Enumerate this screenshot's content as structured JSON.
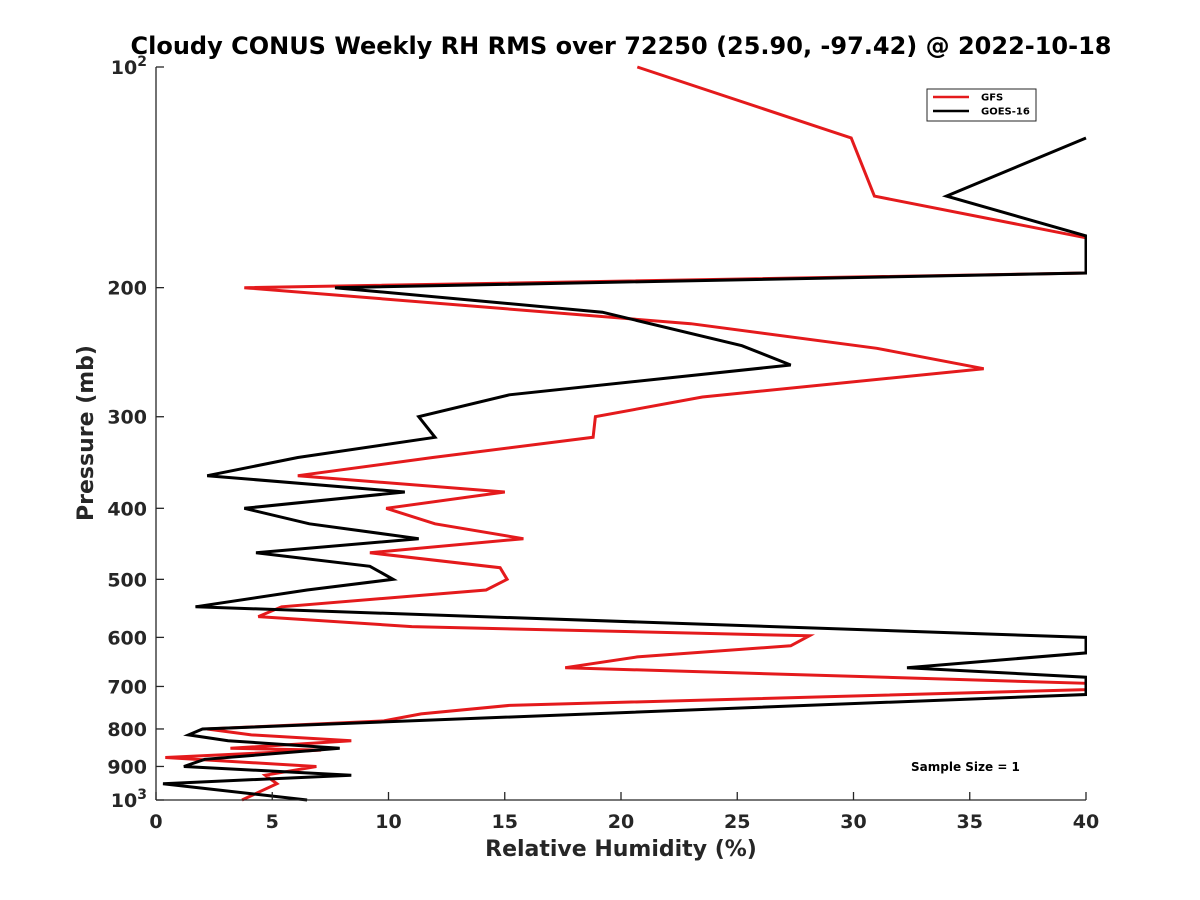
{
  "chart_data": {
    "type": "line",
    "title": "Cloudy CONUS Weekly RH RMS over 72250 (25.90, -97.42) @ 2022-10-18",
    "xlabel": "Relative Humidity (%)",
    "ylabel": "Pressure (mb)",
    "xlim": [
      0,
      40
    ],
    "ylim": [
      100,
      1000
    ],
    "y_scale": "log",
    "y_reversed": true,
    "x_ticks": [
      "0",
      "5",
      "10",
      "15",
      "20",
      "25",
      "30",
      "35",
      "40"
    ],
    "y_ticks": [
      {
        "value": 100,
        "label": "10",
        "sup": "2"
      },
      {
        "value": 200,
        "label": "200",
        "sup": ""
      },
      {
        "value": 300,
        "label": "300",
        "sup": ""
      },
      {
        "value": 400,
        "label": "400",
        "sup": ""
      },
      {
        "value": 500,
        "label": "500",
        "sup": ""
      },
      {
        "value": 600,
        "label": "600",
        "sup": ""
      },
      {
        "value": 700,
        "label": "700",
        "sup": ""
      },
      {
        "value": 800,
        "label": "800",
        "sup": ""
      },
      {
        "value": 900,
        "label": "900",
        "sup": ""
      },
      {
        "value": 1000,
        "label": "10",
        "sup": "3"
      }
    ],
    "grid": false,
    "legend_position": "top-right",
    "annotation": "Sample Size = 1",
    "series": [
      {
        "name": "GFS",
        "color": "#e41a1c",
        "points": [
          [
            20.7,
            100
          ],
          [
            29.9,
            125
          ],
          [
            30.9,
            150
          ],
          [
            40.0,
            171
          ],
          [
            40.0,
            191
          ],
          [
            3.8,
            200
          ],
          [
            23.0,
            224
          ],
          [
            31.0,
            242
          ],
          [
            35.6,
            258
          ],
          [
            23.5,
            282
          ],
          [
            18.9,
            300
          ],
          [
            18.8,
            320
          ],
          [
            11.9,
            341
          ],
          [
            6.1,
            361
          ],
          [
            15.0,
            380
          ],
          [
            9.9,
            400
          ],
          [
            12.0,
            420
          ],
          [
            15.8,
            440
          ],
          [
            9.2,
            460
          ],
          [
            14.8,
            482
          ],
          [
            15.1,
            500
          ],
          [
            14.2,
            517
          ],
          [
            5.4,
            545
          ],
          [
            4.4,
            562
          ],
          [
            11.0,
            580
          ],
          [
            28.1,
            597
          ],
          [
            27.3,
            616
          ],
          [
            20.7,
            638
          ],
          [
            17.6,
            660
          ],
          [
            40.0,
            693
          ],
          [
            40.0,
            707
          ],
          [
            15.2,
            743
          ],
          [
            11.4,
            763
          ],
          [
            9.8,
            780
          ],
          [
            2.2,
            800
          ],
          [
            4.1,
            815
          ],
          [
            8.4,
            830
          ],
          [
            3.2,
            850
          ],
          [
            7.1,
            855
          ],
          [
            0.4,
            875
          ],
          [
            6.9,
            900
          ],
          [
            4.7,
            925
          ],
          [
            5.2,
            950
          ],
          [
            3.7,
            1000
          ]
        ]
      },
      {
        "name": "GOES-16",
        "color": "#000000",
        "points": [
          [
            40.0,
            125
          ],
          [
            34.0,
            150
          ],
          [
            40.0,
            170
          ],
          [
            40.0,
            191
          ],
          [
            7.7,
            200
          ],
          [
            19.2,
            216
          ],
          [
            25.2,
            240
          ],
          [
            27.3,
            255
          ],
          [
            15.2,
            280
          ],
          [
            11.3,
            300
          ],
          [
            12.0,
            320
          ],
          [
            6.1,
            341
          ],
          [
            2.2,
            361
          ],
          [
            10.7,
            380
          ],
          [
            3.8,
            400
          ],
          [
            6.6,
            420
          ],
          [
            11.3,
            440
          ],
          [
            4.3,
            460
          ],
          [
            9.2,
            480
          ],
          [
            10.2,
            500
          ],
          [
            6.5,
            517
          ],
          [
            1.7,
            545
          ],
          [
            40.0,
            600
          ],
          [
            40.0,
            630
          ],
          [
            32.3,
            660
          ],
          [
            40.0,
            680
          ],
          [
            40.0,
            718
          ],
          [
            2.0,
            800
          ],
          [
            1.4,
            815
          ],
          [
            3.1,
            830
          ],
          [
            7.9,
            850
          ],
          [
            2.1,
            880
          ],
          [
            1.2,
            900
          ],
          [
            8.4,
            925
          ],
          [
            0.3,
            950
          ],
          [
            6.5,
            1000
          ]
        ]
      }
    ]
  }
}
